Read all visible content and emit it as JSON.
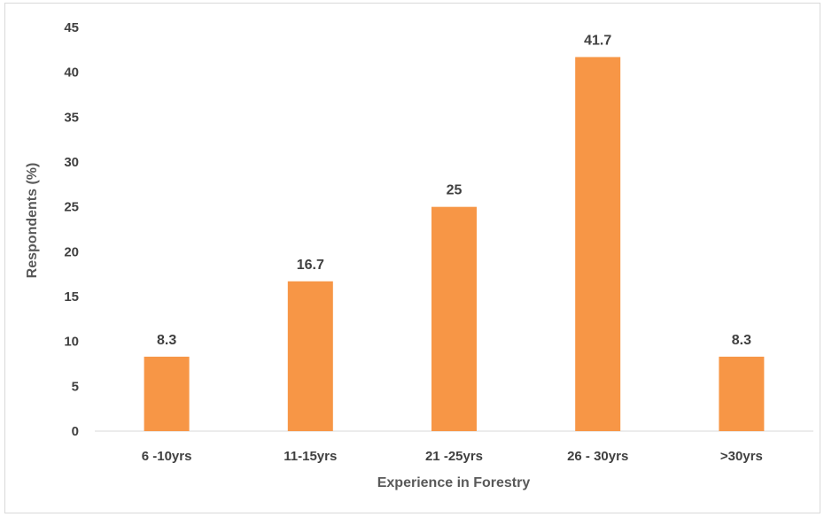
{
  "chart_data": {
    "type": "bar",
    "categories": [
      "6 -10yrs",
      "11-15yrs",
      "21 -25yrs",
      "26 - 30yrs",
      ">30yrs"
    ],
    "values": [
      8.3,
      16.7,
      25,
      41.7,
      8.3
    ],
    "data_labels": [
      "8.3",
      "16.7",
      "25",
      "41.7",
      "8.3"
    ],
    "title": "",
    "xlabel": "Experience in Forestry",
    "ylabel": "Respondents (%)",
    "ylim": [
      0,
      45
    ],
    "yticks": [
      "0",
      "5",
      "10",
      "15",
      "20",
      "25",
      "30",
      "35",
      "40",
      "45"
    ],
    "grid": false,
    "legend": "none",
    "bar_color": "#f79646"
  }
}
